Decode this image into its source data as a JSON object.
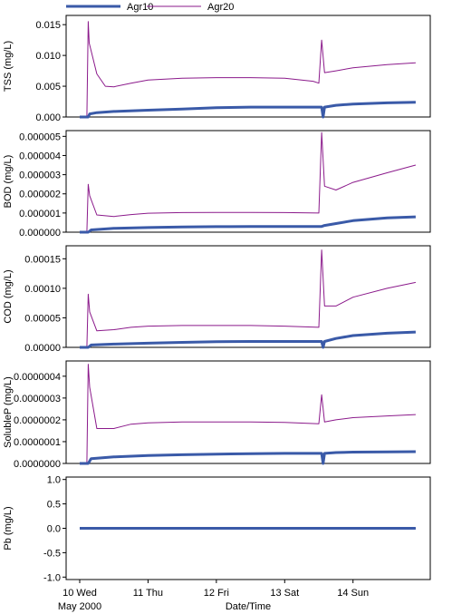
{
  "legend": {
    "placement": "top-left",
    "entries": [
      {
        "name": "Agr10",
        "color": "#3a5aa8"
      },
      {
        "name": "Agr20",
        "color": "#8b1a8b"
      }
    ]
  },
  "x_axis": {
    "label": "Date/Time",
    "month_label": "May 2000",
    "range": [
      "2000-05-10T00:00",
      "2000-05-14T23:00"
    ],
    "ticks": [
      {
        "label": "10 Wed",
        "value": "2000-05-10T00:00"
      },
      {
        "label": "11 Thu",
        "value": "2000-05-11T00:00"
      },
      {
        "label": "12 Fri",
        "value": "2000-05-12T00:00"
      },
      {
        "label": "13 Sat",
        "value": "2000-05-13T00:00"
      },
      {
        "label": "14 Sun",
        "value": "2000-05-14T00:00"
      }
    ]
  },
  "chart_data": [
    {
      "type": "line",
      "ylabel": "TSS (mg/L)",
      "ylim": [
        0,
        0.0165
      ],
      "yticks": [
        "0.015",
        "0.010",
        "0.005",
        "0.000"
      ],
      "ytick_values": [
        0.015,
        0.01,
        0.005,
        0.0
      ],
      "grid": false,
      "series": [
        {
          "name": "Agr10",
          "color": "#3a5aa8",
          "x": [
            "2000-05-10T00:00",
            "2000-05-10T03:00",
            "2000-05-10T03:30",
            "2000-05-10T06:00",
            "2000-05-10T12:00",
            "2000-05-11T00:00",
            "2000-05-11T12:00",
            "2000-05-12T00:00",
            "2000-05-12T12:00",
            "2000-05-13T00:00",
            "2000-05-13T12:00",
            "2000-05-13T13:00",
            "2000-05-13T13:30",
            "2000-05-13T14:00",
            "2000-05-13T18:00",
            "2000-05-14T00:00",
            "2000-05-14T12:00",
            "2000-05-14T22:00"
          ],
          "y": [
            0,
            0,
            0.0005,
            0.0007,
            0.0009,
            0.0011,
            0.0013,
            0.0015,
            0.0016,
            0.0016,
            0.0016,
            0.0016,
            0,
            0.0016,
            0.0019,
            0.0021,
            0.0023,
            0.0024
          ]
        },
        {
          "name": "Agr20",
          "color": "#8b1a8b",
          "x": [
            "2000-05-10T00:00",
            "2000-05-10T02:30",
            "2000-05-10T03:00",
            "2000-05-10T03:20",
            "2000-05-10T06:00",
            "2000-05-10T09:00",
            "2000-05-10T12:00",
            "2000-05-10T18:00",
            "2000-05-11T00:00",
            "2000-05-11T12:00",
            "2000-05-12T00:00",
            "2000-05-12T12:00",
            "2000-05-13T00:00",
            "2000-05-13T10:00",
            "2000-05-13T12:00",
            "2000-05-13T13:00",
            "2000-05-13T14:00",
            "2000-05-13T18:00",
            "2000-05-14T00:00",
            "2000-05-14T12:00",
            "2000-05-14T22:00"
          ],
          "y": [
            0,
            0,
            0.0155,
            0.012,
            0.007,
            0.005,
            0.0049,
            0.0055,
            0.006,
            0.0063,
            0.0064,
            0.0064,
            0.0063,
            0.0058,
            0.0055,
            0.0125,
            0.0072,
            0.0075,
            0.008,
            0.0085,
            0.0088
          ]
        }
      ]
    },
    {
      "type": "line",
      "ylabel": "BOD (mg/L)",
      "ylim": [
        0,
        5.3e-06
      ],
      "yticks": [
        "0.000005",
        "0.000004",
        "0.000003",
        "0.000002",
        "0.000001",
        "0.000000"
      ],
      "ytick_values": [
        5e-06,
        4e-06,
        3e-06,
        2e-06,
        1e-06,
        0.0
      ],
      "grid": false,
      "series": [
        {
          "name": "Agr10",
          "color": "#3a5aa8",
          "x": [
            "2000-05-10T00:00",
            "2000-05-10T03:00",
            "2000-05-10T04:00",
            "2000-05-10T12:00",
            "2000-05-11T00:00",
            "2000-05-11T12:00",
            "2000-05-12T00:00",
            "2000-05-12T12:00",
            "2000-05-13T00:00",
            "2000-05-13T12:00",
            "2000-05-13T13:00",
            "2000-05-13T14:00",
            "2000-05-13T18:00",
            "2000-05-14T00:00",
            "2000-05-14T12:00",
            "2000-05-14T22:00"
          ],
          "y": [
            0,
            0,
            1.2e-07,
            2e-07,
            2.4e-07,
            2.7e-07,
            2.9e-07,
            3e-07,
            3e-07,
            3e-07,
            3e-07,
            3.5e-07,
            4.5e-07,
            6e-07,
            7.5e-07,
            8e-07
          ]
        },
        {
          "name": "Agr20",
          "color": "#8b1a8b",
          "x": [
            "2000-05-10T00:00",
            "2000-05-10T02:30",
            "2000-05-10T03:00",
            "2000-05-10T03:30",
            "2000-05-10T06:00",
            "2000-05-10T12:00",
            "2000-05-10T18:00",
            "2000-05-11T00:00",
            "2000-05-11T12:00",
            "2000-05-12T00:00",
            "2000-05-12T12:00",
            "2000-05-13T00:00",
            "2000-05-13T12:00",
            "2000-05-13T13:00",
            "2000-05-13T14:00",
            "2000-05-13T18:00",
            "2000-05-14T00:00",
            "2000-05-14T12:00",
            "2000-05-14T22:00"
          ],
          "y": [
            0,
            0,
            2.5e-06,
            1.9e-06,
            9e-07,
            8.2e-07,
            9.2e-07,
            9.9e-07,
            1.02e-06,
            1.03e-06,
            1.03e-06,
            1.02e-06,
            1e-06,
            5.2e-06,
            2.4e-06,
            2.2e-06,
            2.6e-06,
            3.1e-06,
            3.5e-06
          ]
        }
      ]
    },
    {
      "type": "line",
      "ylabel": "COD (mg/L)",
      "ylim": [
        0,
        0.000172
      ],
      "yticks": [
        "0.00015",
        "0.00010",
        "0.00005",
        "0.00000"
      ],
      "ytick_values": [
        0.00015,
        0.0001,
        5e-05,
        0.0
      ],
      "grid": false,
      "series": [
        {
          "name": "Agr10",
          "color": "#3a5aa8",
          "x": [
            "2000-05-10T00:00",
            "2000-05-10T03:00",
            "2000-05-10T04:00",
            "2000-05-10T12:00",
            "2000-05-11T00:00",
            "2000-05-11T12:00",
            "2000-05-12T00:00",
            "2000-05-12T12:00",
            "2000-05-13T00:00",
            "2000-05-13T12:00",
            "2000-05-13T13:00",
            "2000-05-13T13:30",
            "2000-05-13T14:00",
            "2000-05-13T18:00",
            "2000-05-14T00:00",
            "2000-05-14T12:00",
            "2000-05-14T22:00"
          ],
          "y": [
            0,
            0,
            4e-06,
            5.5e-06,
            7e-06,
            8.5e-06,
            9.5e-06,
            1e-05,
            1e-05,
            1e-05,
            1e-05,
            0,
            1e-05,
            1.5e-05,
            2e-05,
            2.4e-05,
            2.6e-05
          ]
        },
        {
          "name": "Agr20",
          "color": "#8b1a8b",
          "x": [
            "2000-05-10T00:00",
            "2000-05-10T02:30",
            "2000-05-10T03:00",
            "2000-05-10T03:30",
            "2000-05-10T06:00",
            "2000-05-10T12:00",
            "2000-05-10T18:00",
            "2000-05-11T00:00",
            "2000-05-11T12:00",
            "2000-05-12T00:00",
            "2000-05-12T12:00",
            "2000-05-13T00:00",
            "2000-05-13T12:00",
            "2000-05-13T13:00",
            "2000-05-13T14:00",
            "2000-05-13T18:00",
            "2000-05-14T00:00",
            "2000-05-14T12:00",
            "2000-05-14T22:00"
          ],
          "y": [
            0,
            0,
            9e-05,
            6e-05,
            2.8e-05,
            3e-05,
            3.4e-05,
            3.6e-05,
            3.7e-05,
            3.7e-05,
            3.7e-05,
            3.6e-05,
            3.4e-05,
            0.000165,
            7e-05,
            7e-05,
            8.5e-05,
            0.0001,
            0.00011
          ]
        }
      ]
    },
    {
      "type": "line",
      "ylabel": "SolubleP (mg/L)",
      "ylim": [
        0,
        4.7e-07
      ],
      "yticks": [
        "0.0000004",
        "0.0000003",
        "0.0000002",
        "0.0000001",
        "0.0000000"
      ],
      "ytick_values": [
        4e-07,
        3e-07,
        2e-07,
        1e-07,
        0.0
      ],
      "grid": false,
      "series": [
        {
          "name": "Agr10",
          "color": "#3a5aa8",
          "x": [
            "2000-05-10T00:00",
            "2000-05-10T03:00",
            "2000-05-10T04:00",
            "2000-05-10T12:00",
            "2000-05-11T00:00",
            "2000-05-11T12:00",
            "2000-05-12T00:00",
            "2000-05-12T12:00",
            "2000-05-13T00:00",
            "2000-05-13T12:00",
            "2000-05-13T13:00",
            "2000-05-13T13:30",
            "2000-05-13T14:00",
            "2000-05-13T18:00",
            "2000-05-14T00:00",
            "2000-05-14T12:00",
            "2000-05-14T22:00"
          ],
          "y": [
            0,
            0,
            2.2e-08,
            3e-08,
            3.6e-08,
            4e-08,
            4.3e-08,
            4.5e-08,
            4.6e-08,
            4.6e-08,
            4.6e-08,
            0,
            4.6e-08,
            5e-08,
            5.2e-08,
            5.3e-08,
            5.4e-08
          ]
        },
        {
          "name": "Agr20",
          "color": "#8b1a8b",
          "x": [
            "2000-05-10T00:00",
            "2000-05-10T02:30",
            "2000-05-10T03:00",
            "2000-05-10T03:30",
            "2000-05-10T06:00",
            "2000-05-10T12:00",
            "2000-05-10T18:00",
            "2000-05-11T00:00",
            "2000-05-11T12:00",
            "2000-05-12T00:00",
            "2000-05-12T12:00",
            "2000-05-13T00:00",
            "2000-05-13T12:00",
            "2000-05-13T13:00",
            "2000-05-13T14:00",
            "2000-05-13T18:00",
            "2000-05-14T00:00",
            "2000-05-14T12:00",
            "2000-05-14T22:00"
          ],
          "y": [
            0,
            0,
            4.55e-07,
            3.5e-07,
            1.6e-07,
            1.6e-07,
            1.8e-07,
            1.86e-07,
            1.9e-07,
            1.9e-07,
            1.9e-07,
            1.88e-07,
            1.82e-07,
            3.15e-07,
            1.9e-07,
            2e-07,
            2.1e-07,
            2.18e-07,
            2.24e-07
          ]
        }
      ]
    },
    {
      "type": "line",
      "ylabel": "Pb (mg/L)",
      "ylim": [
        -1.05,
        1.05
      ],
      "yticks": [
        "1.0",
        "0.5",
        "0.0",
        "-0.5",
        "-1.0"
      ],
      "ytick_values": [
        1.0,
        0.5,
        0.0,
        -0.5,
        -1.0
      ],
      "grid": false,
      "series": [
        {
          "name": "Agr10",
          "color": "#3a5aa8",
          "x": [
            "2000-05-10T00:00",
            "2000-05-14T22:00"
          ],
          "y": [
            0,
            0
          ]
        },
        {
          "name": "Agr20",
          "color": "#8b1a8b",
          "x": [
            "2000-05-10T00:00",
            "2000-05-14T22:00"
          ],
          "y": [
            0,
            0
          ]
        }
      ]
    }
  ]
}
